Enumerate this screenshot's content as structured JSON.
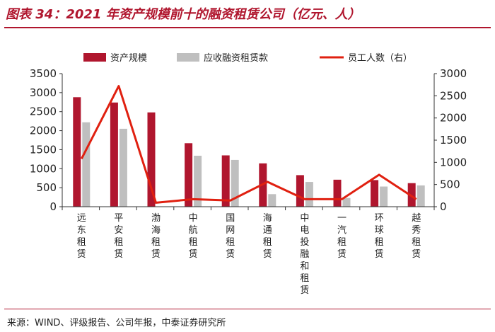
{
  "title": "图表 34：2021 年资产规模前十的融资租赁公司（亿元、人）",
  "source": "来源：WIND、评级报告、公司年报，中泰证券研究所",
  "colors": {
    "asset": "#b0162e",
    "receivable": "#bfbfbf",
    "staff": "#e02010",
    "accent": "#b0162e"
  },
  "chart_data": {
    "type": "bar",
    "title": "2021 年资产规模前十的融资租赁公司（亿元、人）",
    "categories": [
      "远东租赁",
      "平安租赁",
      "渤海租赁",
      "中航租赁",
      "国网租赁",
      "海通租赁",
      "中电投融和租赁",
      "一汽租赁",
      "环球租赁",
      "越秀租赁"
    ],
    "series": [
      {
        "name": "资产规模",
        "type": "bar",
        "axis": "left",
        "values": [
          2880,
          2740,
          2480,
          1670,
          1350,
          1140,
          830,
          710,
          700,
          620
        ]
      },
      {
        "name": "应收融资租赁款",
        "type": "bar",
        "axis": "left",
        "values": [
          2220,
          2050,
          0,
          1340,
          1230,
          330,
          650,
          230,
          530,
          560
        ]
      },
      {
        "name": "员工人数（右）",
        "type": "line",
        "axis": "right",
        "values": [
          1080,
          2720,
          90,
          170,
          140,
          560,
          170,
          170,
          720,
          170
        ]
      }
    ],
    "left_axis": {
      "min": 0,
      "max": 3500,
      "ticks": [
        0,
        500,
        1000,
        1500,
        2000,
        2500,
        3000,
        3500
      ]
    },
    "right_axis": {
      "min": 0,
      "max": 3000,
      "ticks": [
        0,
        500,
        1000,
        1500,
        2000,
        2500,
        3000
      ]
    },
    "legend": [
      "资产规模",
      "应收融资租赁款",
      "员工人数（右）"
    ],
    "legend_position": "top",
    "grid": false
  }
}
